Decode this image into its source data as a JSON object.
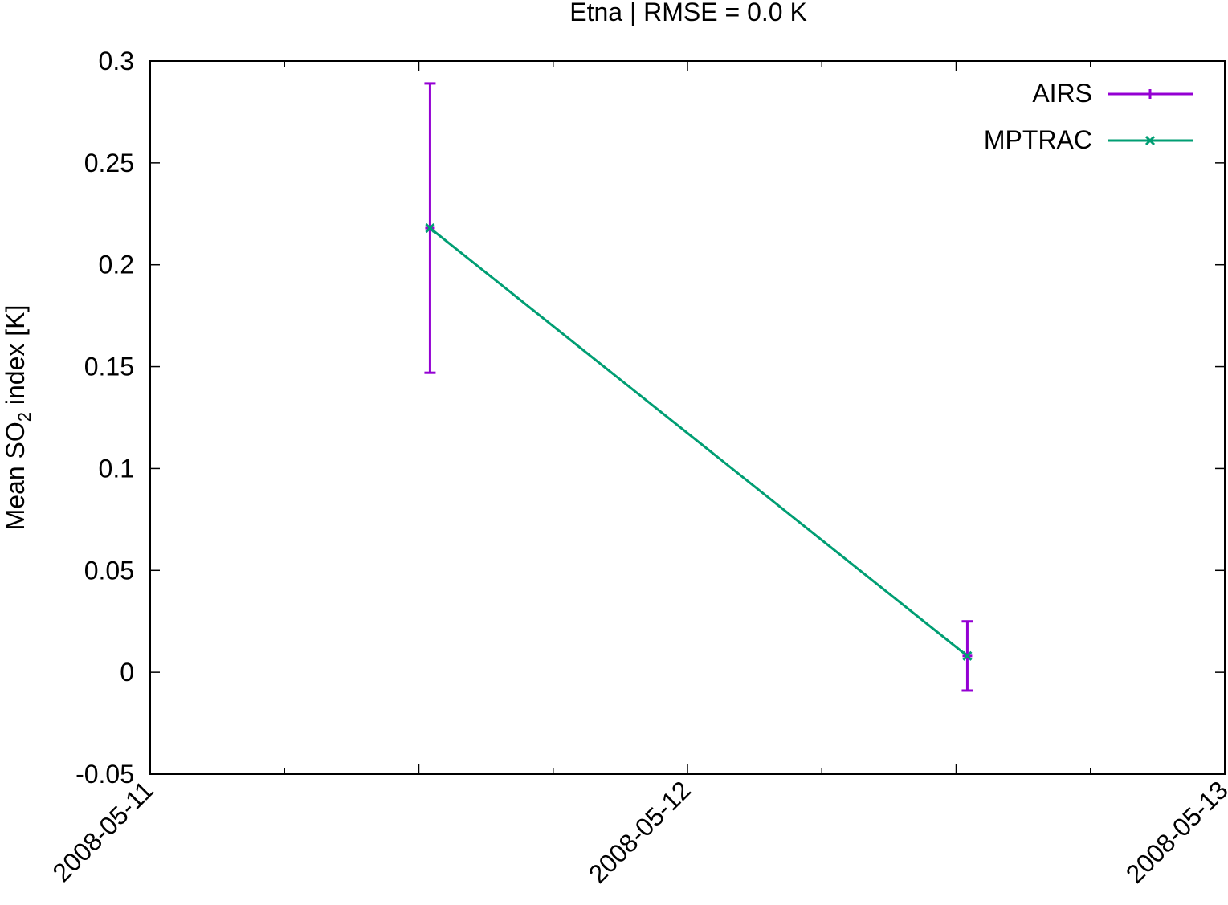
{
  "chart_data": {
    "type": "line",
    "title": "Etna | RMSE = 0.0 K",
    "ylabel": {
      "prefix": "Mean SO",
      "subscript": "2",
      "suffix": " index [K]"
    },
    "xlabel": "",
    "x_ticks": [
      "2008-05-11",
      "2008-05-12",
      "2008-05-13"
    ],
    "x_range": [
      "2008-05-11T00:00",
      "2008-05-13T00:00"
    ],
    "y_ticks": [
      "0.3",
      "0.25",
      "0.2",
      "0.15",
      "0.1",
      "0.05",
      "0",
      "-0.05"
    ],
    "ylim": [
      -0.05,
      0.3
    ],
    "grid": false,
    "legend_position": "top-right",
    "series": [
      {
        "name": "AIRS",
        "color": "#9400d3",
        "style": "errorbars",
        "points": [
          {
            "x": "2008-05-11T12:30",
            "y": 0.218,
            "ymin": 0.147,
            "ymax": 0.289
          },
          {
            "x": "2008-05-12T12:30",
            "y": 0.008,
            "ymin": -0.009,
            "ymax": 0.025
          }
        ]
      },
      {
        "name": "MPTRAC",
        "color": "#009e73",
        "style": "linespoints",
        "points": [
          {
            "x": "2008-05-11T12:30",
            "y": 0.218
          },
          {
            "x": "2008-05-12T12:30",
            "y": 0.008
          }
        ]
      }
    ]
  }
}
